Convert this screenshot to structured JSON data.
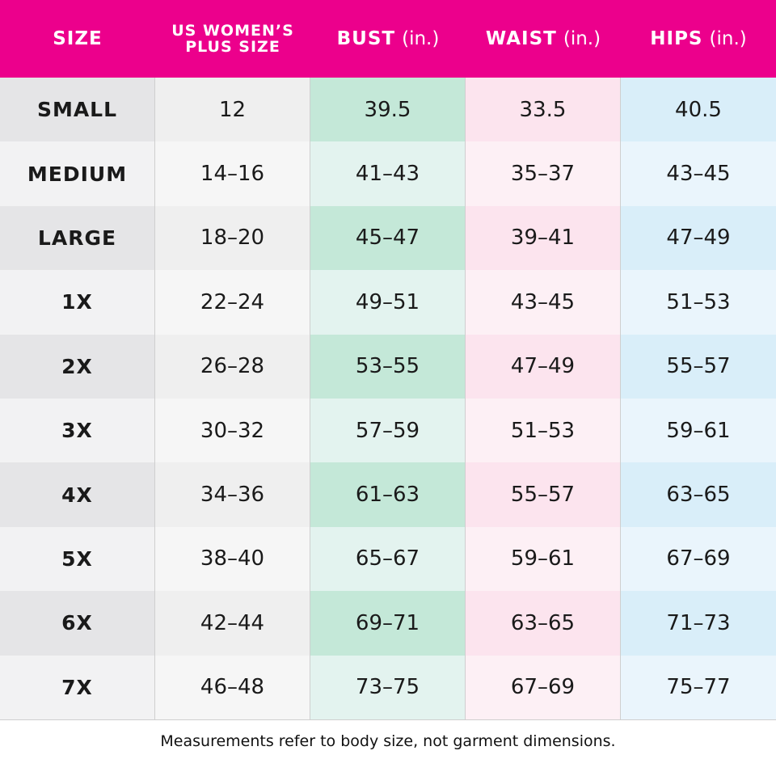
{
  "table": {
    "header": [
      {
        "lines": [
          "SIZE"
        ]
      },
      {
        "lines": [
          "US WOMEN’S",
          "PLUS SIZE"
        ]
      },
      {
        "lines": [
          "BUST"
        ],
        "unit": "(in.)"
      },
      {
        "lines": [
          "WAIST"
        ],
        "unit": "(in.)"
      },
      {
        "lines": [
          "HIPS"
        ],
        "unit": "(in.)"
      }
    ],
    "rows": [
      [
        "SMALL",
        "12",
        "39.5",
        "33.5",
        "40.5"
      ],
      [
        "MEDIUM",
        "14–16",
        "41–43",
        "35–37",
        "43–45"
      ],
      [
        "LARGE",
        "18–20",
        "45–47",
        "39–41",
        "47–49"
      ],
      [
        "1X",
        "22–24",
        "49–51",
        "43–45",
        "51–53"
      ],
      [
        "2X",
        "26–28",
        "53–55",
        "47–49",
        "55–57"
      ],
      [
        "3X",
        "30–32",
        "57–59",
        "51–53",
        "59–61"
      ],
      [
        "4X",
        "34–36",
        "61–63",
        "55–57",
        "63–65"
      ],
      [
        "5X",
        "38–40",
        "65–67",
        "59–61",
        "67–69"
      ],
      [
        "6X",
        "42–44",
        "69–71",
        "63–65",
        "71–73"
      ],
      [
        "7X",
        "46–48",
        "73–75",
        "67–69",
        "75–77"
      ]
    ]
  },
  "footnote": "Measurements refer to body size, not garment dimensions."
}
